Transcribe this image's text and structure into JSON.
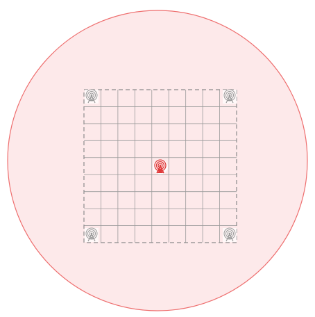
{
  "diagram": {
    "coverage_zone": {
      "fill": "#fde9ea",
      "stroke": "#ee6e6e"
    },
    "grid_area": {
      "rows": 9,
      "columns": 9,
      "grid_color": "#9a9a9a",
      "border_color": "#8c8c8c",
      "border_style": "dashed"
    },
    "central_antenna": {
      "icon": "radio-tower-icon",
      "color": "#e03a3a",
      "role": "active-transmitter"
    },
    "corner_antennas": [
      {
        "id": "corner-antenna-top-left",
        "icon": "radio-tower-icon",
        "color": "#9a9a9a"
      },
      {
        "id": "corner-antenna-top-right",
        "icon": "radio-tower-icon",
        "color": "#9a9a9a"
      },
      {
        "id": "corner-antenna-bottom-left",
        "icon": "radio-tower-icon",
        "color": "#9a9a9a"
      },
      {
        "id": "corner-antenna-bottom-right",
        "icon": "radio-tower-icon",
        "color": "#9a9a9a"
      }
    ]
  }
}
